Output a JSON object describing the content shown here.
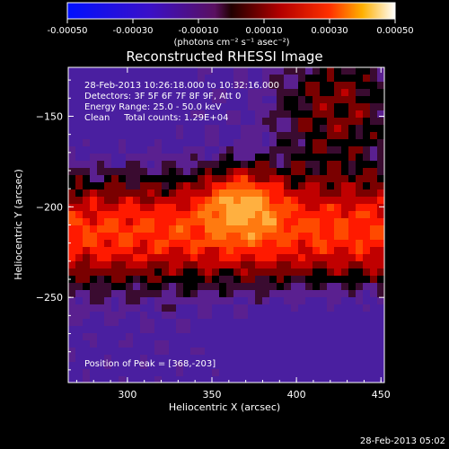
{
  "chart_data": {
    "type": "heatmap",
    "title": "Reconstructed RHESSI Image",
    "xlabel": "Heliocentric X (arcsec)",
    "ylabel": "Heliocentric Y (arcsec)",
    "xlim": [
      265,
      452
    ],
    "ylim": [
      -297,
      -123
    ],
    "x_ticks": [
      300,
      350,
      400,
      450
    ],
    "y_ticks": [
      -150,
      -200,
      -250
    ],
    "colorbar": {
      "min": -0.0005,
      "max": 0.0005,
      "ticks": [
        "-0.00050",
        "-0.00030",
        "-0.00010",
        "0.00010",
        "0.00030",
        "0.00050"
      ],
      "label": "(photons cm⁻² s⁻¹ asec⁻²)"
    },
    "annotations": [
      "28-Feb-2013 10:26:18.000 to 10:32:16.000",
      "Detectors: 3F 5F 6F 7F 8F 9F, Att 0",
      "Energy Range: 25.0 - 50.0 keV",
      "Clean     Total counts: 1.29E+04"
    ],
    "peak_label": "Position of Peak = [368,-203]",
    "peak": [
      368,
      -203
    ]
  },
  "footer_timestamp": "28-Feb-2013 05:02"
}
